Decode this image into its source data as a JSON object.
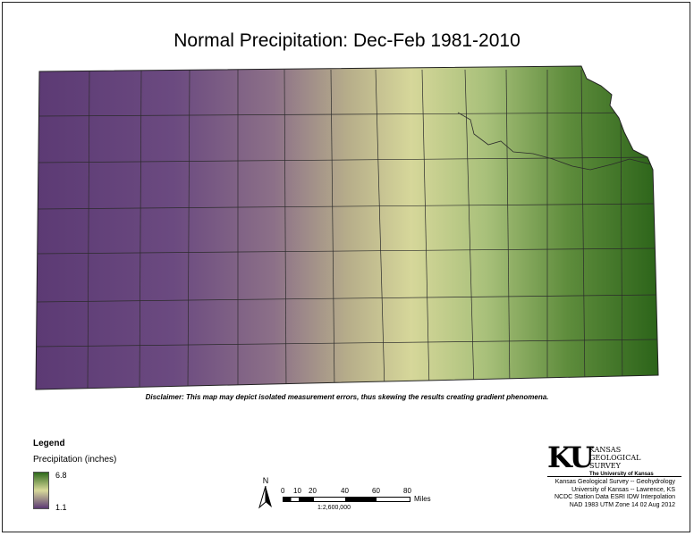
{
  "title": "Normal Precipitation:  Dec-Feb 1981-2010",
  "disclaimer": "Disclaimer: This map may depict isolated measurement errors, thus skewing the results creating gradient phenomena.",
  "legend": {
    "heading": "Legend",
    "variable": "Precipitation (inches)",
    "max": "6.8",
    "min": "1.1",
    "color_high": "#2f6a1c",
    "color_mid": "#d8d99a",
    "color_low": "#5c3a74"
  },
  "north_label": "N",
  "scale": {
    "ticks": [
      "0",
      "10",
      "20",
      "40",
      "60",
      "80"
    ],
    "unit": "Miles",
    "ratio": "1:2,600,000"
  },
  "org": {
    "logo": "KU",
    "name_lines": [
      "KANSAS",
      "GEOLOGICAL",
      "SURVEY"
    ],
    "university": "The University of Kansas"
  },
  "credits": [
    "Kansas Geological Survey -- Geohydrology",
    "University of Kansas -- Lawrence, KS",
    "NCDC Station Data  ESRI IDW Interpolation",
    "NAD 1983 UTM Zone 14  02 Aug 2012"
  ]
}
